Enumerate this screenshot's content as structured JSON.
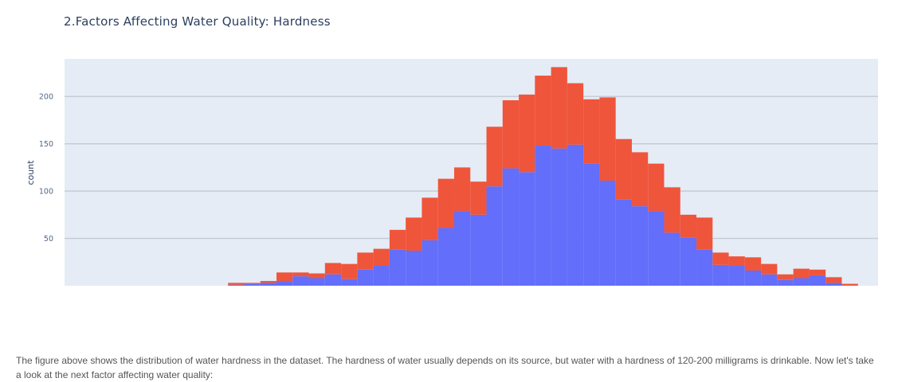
{
  "chart_data": {
    "type": "bar",
    "title": "2.Factors Affecting Water Quality: Hardness",
    "xlabel": "",
    "ylabel": "count",
    "barmode": "stack",
    "ylim": [
      0,
      240
    ],
    "yticks": [
      50,
      100,
      150,
      200
    ],
    "grid": true,
    "bins": 50,
    "series": [
      {
        "color": "#636efa",
        "values": [
          0,
          0,
          0,
          0,
          0,
          0,
          0,
          0,
          0,
          0,
          1,
          2,
          3,
          5,
          10,
          8,
          12,
          7,
          17,
          21,
          38,
          37,
          48,
          61,
          79,
          75,
          105,
          124,
          120,
          148,
          145,
          149,
          129,
          111,
          91,
          84,
          79,
          56,
          51,
          38,
          22,
          21,
          16,
          12,
          6,
          8,
          11,
          3,
          0,
          0
        ]
      },
      {
        "color": "#ef553b",
        "values": [
          0,
          0,
          0,
          0,
          0,
          0,
          0,
          0,
          0,
          0,
          2,
          1,
          2,
          9,
          4,
          5,
          12,
          16,
          18,
          18,
          21,
          35,
          45,
          52,
          46,
          35,
          63,
          72,
          82,
          74,
          86,
          65,
          68,
          88,
          64,
          57,
          50,
          48,
          24,
          34,
          13,
          10,
          14,
          11,
          6,
          10,
          6,
          6,
          2,
          0
        ]
      }
    ]
  },
  "caption": "The figure above shows the distribution of water hardness in the dataset. The hardness of water usually depends on its source, but water with a hardness of 120-200 milligrams is drinkable. Now let's take a look at the next factor affecting water quality:"
}
